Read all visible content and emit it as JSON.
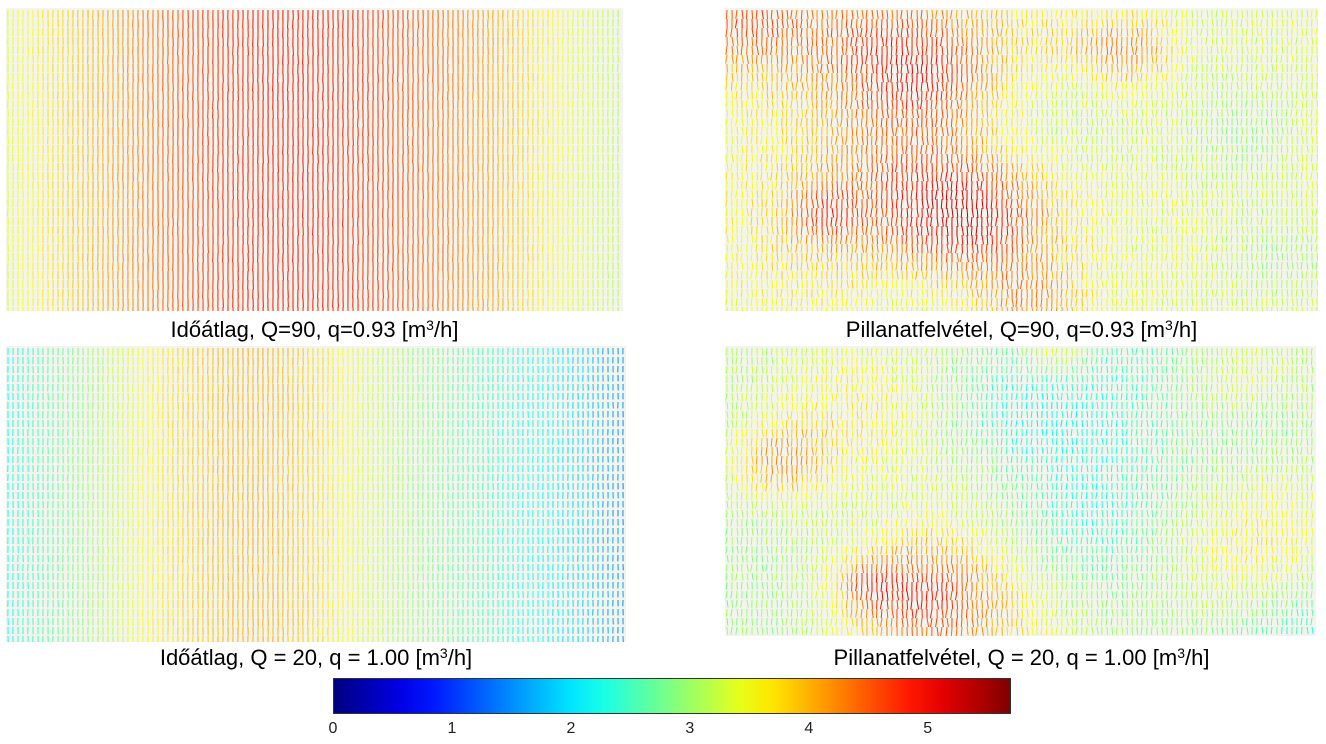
{
  "panels": [
    {
      "id": "top-left",
      "caption_main": "Időátlag, Q=90, q=0.93 [m",
      "caption_sup": "3",
      "caption_tail": "/h]",
      "field": "time-average",
      "column_magnitude_profile": [
        3.4,
        3.7,
        4.0,
        4.3,
        4.6,
        4.8,
        4.9,
        4.9,
        4.8,
        4.6,
        4.4,
        4.1,
        3.7,
        3.4,
        3.1
      ]
    },
    {
      "id": "top-right",
      "caption_main": "Pillanatfelvétel, Q=90, q=0.93 [m",
      "caption_sup": "3",
      "caption_tail": "/h]",
      "field": "snapshot",
      "base_magnitude": 3.4
    },
    {
      "id": "bottom-left",
      "caption_main": "Időátlag, Q = 20, q = 1.00 [m",
      "caption_sup": "3",
      "caption_tail": "/h]",
      "field": "time-average",
      "column_magnitude_profile": [
        2.2,
        2.6,
        3.0,
        3.5,
        3.8,
        4.0,
        4.0,
        3.8,
        3.4,
        3.0,
        2.7,
        2.4,
        2.2,
        1.9,
        1.5
      ]
    },
    {
      "id": "bottom-right",
      "caption_main": "Pillanatfelvétel, Q = 20, q = 1.00 [m",
      "caption_sup": "3",
      "caption_tail": "/h]",
      "field": "snapshot",
      "base_magnitude": 2.9
    }
  ],
  "colorbar": {
    "colormap": "jet",
    "min": 0,
    "max": 5.7,
    "ticks": [
      "0",
      "1",
      "2",
      "3",
      "4",
      "5"
    ],
    "tick_values": [
      0,
      1,
      2,
      3,
      4,
      5
    ]
  }
}
